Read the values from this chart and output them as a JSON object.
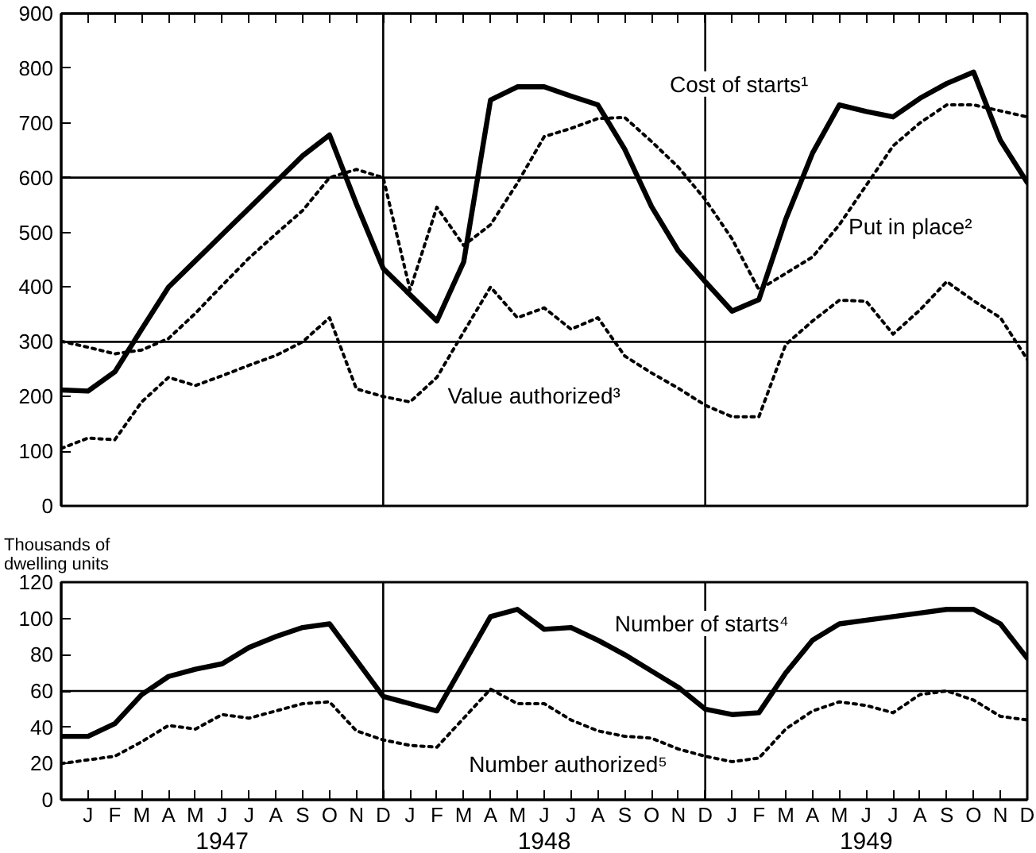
{
  "chart_data": [
    {
      "type": "line",
      "tick_labels": "y",
      "ylim": [
        0,
        900
      ],
      "yticks": [
        0,
        100,
        200,
        300,
        400,
        500,
        600,
        700,
        800,
        900
      ],
      "categories": [
        null,
        null,
        null,
        null,
        null,
        null,
        null,
        null,
        null,
        null,
        null,
        null,
        null,
        null,
        null,
        null,
        null,
        null,
        null,
        null,
        null,
        null,
        null,
        null,
        null,
        null,
        null,
        null,
        null,
        null,
        null,
        null,
        null,
        null,
        null,
        null,
        null
      ],
      "series": [
        {
          "name": "Cost of starts¹",
          "color": "#000000",
          "line_style": "solid",
          "values": [
            212,
            210,
            245,
            323,
            400,
            448,
            496,
            544,
            592,
            640,
            678,
            552,
            434,
            386,
            338,
            446,
            742,
            766,
            766,
            749,
            733,
            652,
            547,
            466,
            410,
            356,
            377,
            524,
            645,
            733,
            721,
            711,
            745,
            772,
            793,
            668,
            591
          ]
        },
        {
          "name": "Put in place²",
          "color": "#000000",
          "line_style": "dotted",
          "values": [
            301,
            290,
            278,
            285,
            306,
            352,
            403,
            453,
            497,
            540,
            600,
            615,
            600,
            395,
            546,
            476,
            514,
            590,
            675,
            690,
            708,
            710,
            666,
            619,
            560,
            488,
            395,
            425,
            455,
            514,
            586,
            658,
            700,
            733,
            733,
            722,
            711
          ]
        },
        {
          "name": "Value authorized³",
          "color": "#000000",
          "line_style": "dotted",
          "values": [
            105,
            124,
            121,
            190,
            235,
            220,
            238,
            257,
            275,
            300,
            344,
            214,
            200,
            190,
            235,
            318,
            400,
            344,
            362,
            323,
            344,
            274,
            243,
            215,
            184,
            163,
            163,
            295,
            338,
            376,
            374,
            314,
            358,
            410,
            375,
            344,
            268
          ]
        }
      ],
      "ref_lines": [
        {
          "axis": "y",
          "value": 300
        },
        {
          "axis": "y",
          "value": 600
        }
      ]
    },
    {
      "type": "line",
      "ylim": [
        0,
        120
      ],
      "yticks": [
        0,
        20,
        40,
        60,
        80,
        100,
        120
      ],
      "ylabel": "Thousands of\ndwelling units",
      "categories": [
        null,
        "J",
        "F",
        "M",
        "A",
        "M",
        "J",
        "J",
        "A",
        "S",
        "O",
        "N",
        "D",
        "J",
        "F",
        "M",
        "A",
        "M",
        "J",
        "J",
        "A",
        "S",
        "O",
        "N",
        "D",
        "J",
        "F",
        "M",
        "A",
        "M",
        "J",
        "J",
        "A",
        "S",
        "O",
        "N",
        "D"
      ],
      "series": [
        {
          "name": "Number of starts⁴",
          "color": "#000000",
          "line_style": "solid",
          "values": [
            35,
            35,
            42,
            58,
            68,
            72,
            75,
            84,
            90,
            95,
            97,
            77,
            57,
            53,
            49,
            75,
            101,
            105,
            94,
            95,
            88,
            80,
            71,
            62,
            50,
            47,
            48,
            70,
            88,
            97,
            99,
            101,
            103,
            105,
            105,
            97,
            78
          ]
        },
        {
          "name": "Number authorized⁵",
          "color": "#000000",
          "line_style": "dotted",
          "values": [
            20,
            22,
            24,
            32,
            41,
            39,
            47,
            45,
            49,
            53,
            54,
            38,
            33,
            30,
            29,
            45,
            61,
            53,
            53,
            44,
            38,
            35,
            34,
            28,
            24,
            21,
            23,
            39,
            49,
            54,
            52,
            48,
            58,
            60,
            55,
            46,
            44
          ]
        }
      ],
      "ref_lines": [
        {
          "axis": "y",
          "value": 60
        }
      ],
      "annotations": [
        "1947",
        "1948",
        "1949"
      ]
    }
  ]
}
